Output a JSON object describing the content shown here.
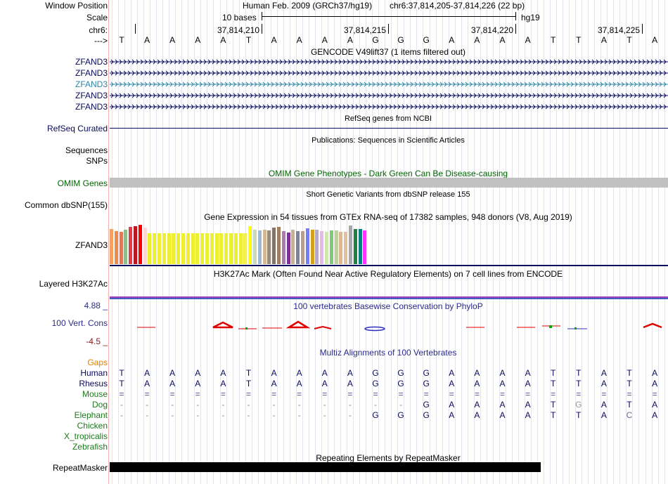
{
  "header": {
    "window_position_label": "Window Position",
    "scale_label": "Scale",
    "chr_label": "chr6:",
    "arrow_label": "--->",
    "assembly": "Human Feb. 2009 (GRCh37/hg19)",
    "position": "chr6:37,814,205-37,814,226 (22 bp)",
    "scale_text": "10 bases",
    "db_label": "hg19",
    "ticks": [
      "37,814,210",
      "37,814,215",
      "37,814,220",
      "37,814,225"
    ]
  },
  "sequence": [
    "T",
    "A",
    "A",
    "A",
    "A",
    "T",
    "A",
    "A",
    "A",
    "A",
    "G",
    "G",
    "G",
    "A",
    "A",
    "A",
    "A",
    "T",
    "T",
    "A",
    "T",
    "A"
  ],
  "gencode": {
    "title": "GENCODE V49lift37 (1 items filtered out)",
    "rows": [
      {
        "label": "ZFAND3",
        "color": "#0a0a5a"
      },
      {
        "label": "ZFAND3",
        "color": "#0a0a5a"
      },
      {
        "label": "ZFAND3",
        "color": "#2d86a8"
      },
      {
        "label": "ZFAND3",
        "color": "#0a0a5a"
      },
      {
        "label": "ZFAND3",
        "color": "#0a0a5a"
      }
    ]
  },
  "refseq": {
    "title": "RefSeq genes from NCBI",
    "label": "RefSeq Curated"
  },
  "publications": {
    "title": "Publications: Sequences in Scientific Articles",
    "label": "Sequences"
  },
  "snps_label": "SNPs",
  "omim": {
    "title": "OMIM Gene Phenotypes - Dark Green Can Be Disease-causing",
    "label": "OMIM Genes"
  },
  "dbsnp": {
    "title": "Short Genetic Variants from dbSNP release 155",
    "label": "Common dbSNP(155)"
  },
  "gtex": {
    "title": "Gene Expression in 54 tissues from GTEx RNA-seq of 17382 samples, 948 donors (V8, Aug 2019)",
    "label": "ZFAND3",
    "bars": [
      {
        "h": 50,
        "c": "#f4a261"
      },
      {
        "h": 47,
        "c": "#f08a4b"
      },
      {
        "h": 46,
        "c": "#e07a5f"
      },
      {
        "h": 49,
        "c": "#8fbc8f"
      },
      {
        "h": 53,
        "c": "#e63946"
      },
      {
        "h": 54,
        "c": "#c1121f"
      },
      {
        "h": 56,
        "c": "#ff0000"
      },
      {
        "h": 52,
        "c": "#ffd6d6"
      },
      {
        "h": 44,
        "c": "#eeee33"
      },
      {
        "h": 44,
        "c": "#eeee33"
      },
      {
        "h": 44,
        "c": "#eeee33"
      },
      {
        "h": 44,
        "c": "#eeee33"
      },
      {
        "h": 44,
        "c": "#eeee33"
      },
      {
        "h": 44,
        "c": "#eeee33"
      },
      {
        "h": 44,
        "c": "#eeee33"
      },
      {
        "h": 44,
        "c": "#eeee33"
      },
      {
        "h": 44,
        "c": "#eeee33"
      },
      {
        "h": 44,
        "c": "#eeee33"
      },
      {
        "h": 44,
        "c": "#eeee33"
      },
      {
        "h": 44,
        "c": "#eeee33"
      },
      {
        "h": 44,
        "c": "#eeee33"
      },
      {
        "h": 44,
        "c": "#eeee33"
      },
      {
        "h": 44,
        "c": "#eeee33"
      },
      {
        "h": 44,
        "c": "#eeee33"
      },
      {
        "h": 44,
        "c": "#eeee33"
      },
      {
        "h": 44,
        "c": "#eeee33"
      },
      {
        "h": 44,
        "c": "#eeee33"
      },
      {
        "h": 44,
        "c": "#eeee33"
      },
      {
        "h": 44,
        "c": "#f0f055"
      },
      {
        "h": 54,
        "c": "#ffff00"
      },
      {
        "h": 49,
        "c": "#c8d8c0"
      },
      {
        "h": 48,
        "c": "#9fb8d8"
      },
      {
        "h": 49,
        "c": "#d4b896"
      },
      {
        "h": 48,
        "c": "#9a8c7c"
      },
      {
        "h": 52,
        "c": "#8a7060"
      },
      {
        "h": 53,
        "c": "#a08060"
      },
      {
        "h": 47,
        "c": "#b07ab0"
      },
      {
        "h": 45,
        "c": "#7b3294"
      },
      {
        "h": 49,
        "c": "#c5b09a"
      },
      {
        "h": 47,
        "c": "#8080a0"
      },
      {
        "h": 47,
        "c": "#b8a090"
      },
      {
        "h": 51,
        "c": "#7a7aff"
      },
      {
        "h": 49,
        "c": "#d4a017"
      },
      {
        "h": 49,
        "c": "#b8a8c8"
      },
      {
        "h": 47,
        "c": "#e8b8e8"
      },
      {
        "h": 46,
        "c": "#cfe8b0"
      },
      {
        "h": 48,
        "c": "#80c880"
      },
      {
        "h": 48,
        "c": "#c0d0a0"
      },
      {
        "h": 46,
        "c": "#d8b898"
      },
      {
        "h": 46,
        "c": "#e0c0a0"
      },
      {
        "h": 55,
        "c": "#a8a8a8"
      },
      {
        "h": 50,
        "c": "#208040"
      },
      {
        "h": 50,
        "c": "#008080"
      },
      {
        "h": 48,
        "c": "#ff33ff"
      }
    ]
  },
  "h3k27ac": {
    "title": "H3K27Ac Mark (Often Found Near Active Regulatory Elements) on 7 cell lines from ENCODE",
    "label": "Layered H3K27Ac"
  },
  "conservation": {
    "title": "100 vertebrates Basewise Conservation by PhyloP",
    "label": "100 Vert. Cons",
    "max": "4.88 _",
    "min": "-4.5 _"
  },
  "multiz": {
    "title": "Multiz Alignments of 100 Vertebrates",
    "gaps_label": "Gaps",
    "species": [
      {
        "name": "Human",
        "color": "#0a0a5a",
        "seq": [
          "T",
          "A",
          "A",
          "A",
          "A",
          "T",
          "A",
          "A",
          "A",
          "A",
          "G",
          "G",
          "G",
          "A",
          "A",
          "A",
          "A",
          "T",
          "T",
          "A",
          "T",
          "A"
        ]
      },
      {
        "name": "Rhesus",
        "color": "#0a0a5a",
        "seq": [
          "T",
          "A",
          "A",
          "A",
          "A",
          "T",
          "A",
          "A",
          "A",
          "A",
          "G",
          "G",
          "G",
          "A",
          "A",
          "A",
          "A",
          "T",
          "T",
          "A",
          "T",
          "A"
        ]
      },
      {
        "name": "Mouse",
        "color": "#1a7a1a",
        "seq": [
          "=",
          "=",
          "=",
          "=",
          "=",
          "=",
          "=",
          "=",
          "=",
          "=",
          "=",
          "=",
          "=",
          "=",
          "=",
          "=",
          "=",
          "=",
          "=",
          "=",
          "=",
          "="
        ]
      },
      {
        "name": "Dog",
        "color": "#1a7a1a",
        "seq": [
          "-",
          "-",
          "-",
          "-",
          "-",
          "-",
          "-",
          "-",
          "-",
          "-",
          "-",
          "-",
          "G",
          "A",
          "A",
          "A",
          "A",
          "T",
          "G",
          "A",
          "T",
          "A"
        ]
      },
      {
        "name": "Elephant",
        "color": "#1a7a1a",
        "seq": [
          "-",
          "-",
          "-",
          "-",
          "-",
          "-",
          "-",
          "-",
          "-",
          "-",
          "G",
          "G",
          "G",
          "A",
          "A",
          "A",
          "A",
          "T",
          "T",
          "A",
          "C",
          "A"
        ]
      },
      {
        "name": "Chicken",
        "color": "#1a7a1a",
        "seq": []
      },
      {
        "name": "X_tropicalis",
        "color": "#1a7a1a",
        "seq": []
      },
      {
        "name": "Zebrafish",
        "color": "#1a7a1a",
        "seq": []
      }
    ]
  },
  "repeatmasker": {
    "title": "Repeating Elements by RepeatMasker",
    "label": "RepeatMasker"
  }
}
